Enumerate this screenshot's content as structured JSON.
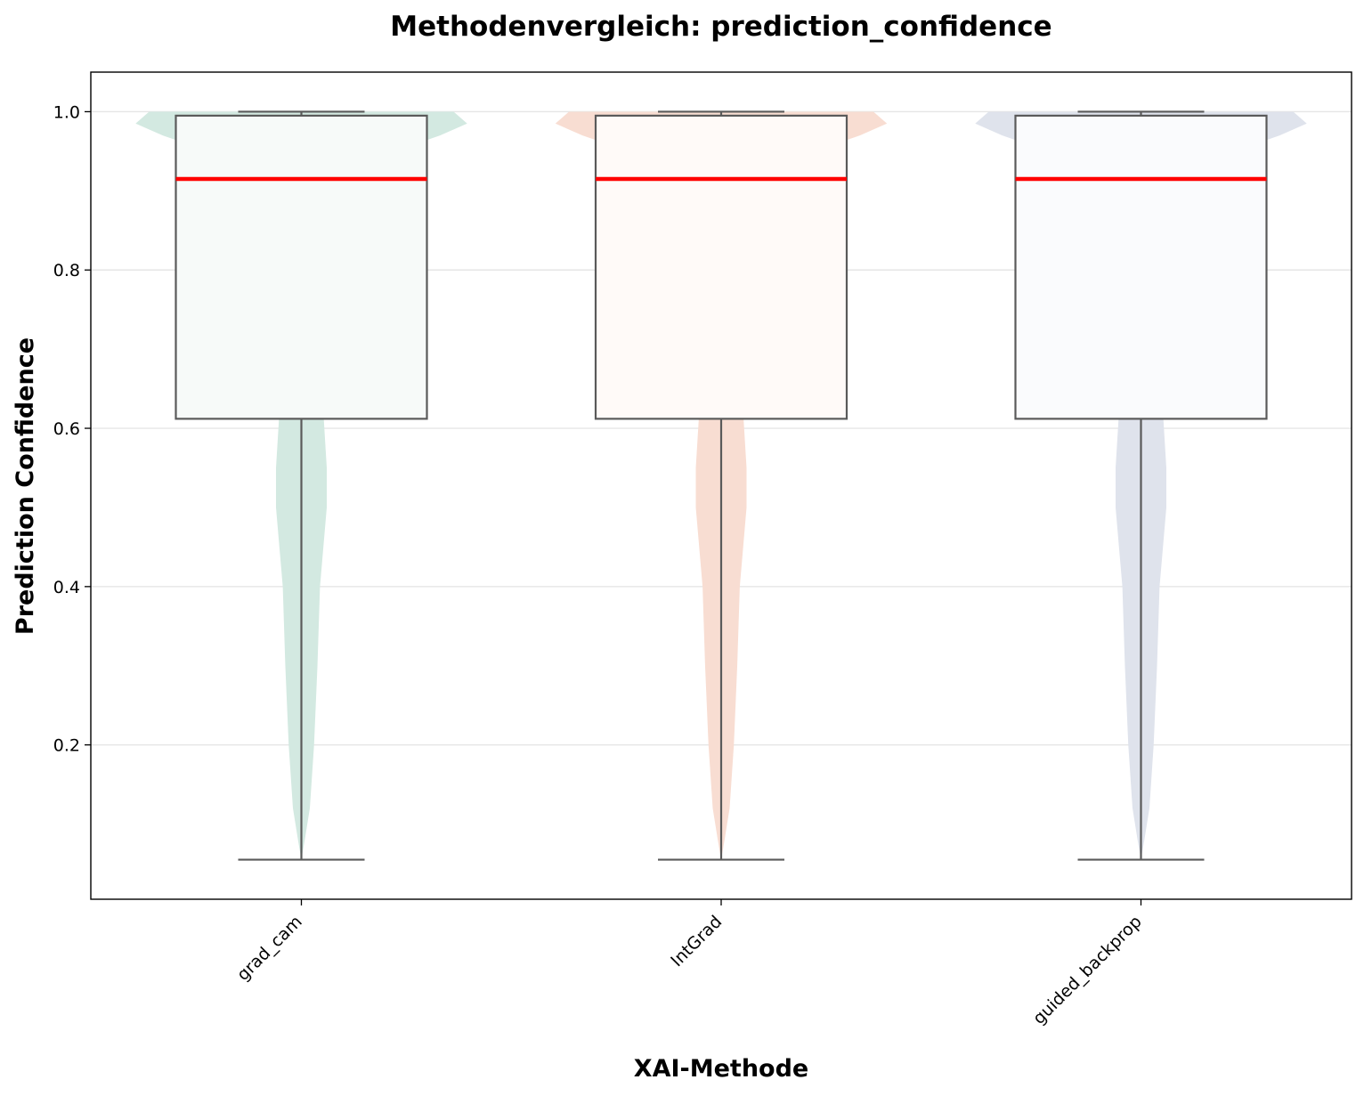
{
  "chart_data": {
    "type": "violin+box",
    "title": "Methodenvergleich: prediction_confidence",
    "xlabel": "XAI-Methode",
    "ylabel": "Prediction Confidence",
    "categories": [
      "grad_cam",
      "IntGrad",
      "guided_backprop"
    ],
    "ylim": [
      0.005,
      1.05
    ],
    "yticks": [
      0.2,
      0.4,
      0.6,
      0.8,
      1.0
    ],
    "grid": "horizontal",
    "colors": {
      "violins": [
        "#d3e9e1",
        "#f8ddd2",
        "#dfe3ec"
      ],
      "box_fill": [
        "#f7faf9",
        "#fffaf8",
        "#fafbfd"
      ],
      "box_edge": "#5a5a5a",
      "median": "#ff0000",
      "grid": "#e6e6e6"
    },
    "series": [
      {
        "name": "grad_cam",
        "box": {
          "min": 0.055,
          "q1": 0.612,
          "median": 0.915,
          "q3": 0.995,
          "max": 1.0
        },
        "violin": {
          "y": [
            0.055,
            0.08,
            0.12,
            0.2,
            0.3,
            0.4,
            0.5,
            0.55,
            0.62,
            0.7,
            0.75,
            0.8,
            0.85,
            0.9,
            0.95,
            0.97,
            0.985,
            1.0
          ],
          "w": [
            0.0,
            0.02,
            0.05,
            0.075,
            0.095,
            0.11,
            0.15,
            0.15,
            0.13,
            0.14,
            0.15,
            0.17,
            0.21,
            0.32,
            0.55,
            0.82,
            0.98,
            0.9
          ]
        }
      },
      {
        "name": "IntGrad",
        "box": {
          "min": 0.055,
          "q1": 0.612,
          "median": 0.915,
          "q3": 0.995,
          "max": 1.0
        },
        "violin": {
          "y": [
            0.055,
            0.08,
            0.12,
            0.2,
            0.3,
            0.4,
            0.5,
            0.55,
            0.62,
            0.7,
            0.75,
            0.8,
            0.85,
            0.9,
            0.95,
            0.97,
            0.985,
            1.0
          ],
          "w": [
            0.0,
            0.02,
            0.05,
            0.075,
            0.095,
            0.11,
            0.15,
            0.15,
            0.13,
            0.14,
            0.15,
            0.17,
            0.21,
            0.32,
            0.55,
            0.82,
            0.98,
            0.9
          ]
        }
      },
      {
        "name": "guided_backprop",
        "box": {
          "min": 0.055,
          "q1": 0.612,
          "median": 0.915,
          "q3": 0.995,
          "max": 1.0
        },
        "violin": {
          "y": [
            0.055,
            0.08,
            0.12,
            0.2,
            0.3,
            0.4,
            0.5,
            0.55,
            0.62,
            0.7,
            0.75,
            0.8,
            0.85,
            0.9,
            0.95,
            0.97,
            0.985,
            1.0
          ],
          "w": [
            0.0,
            0.02,
            0.05,
            0.075,
            0.095,
            0.11,
            0.15,
            0.15,
            0.13,
            0.14,
            0.15,
            0.17,
            0.21,
            0.32,
            0.55,
            0.82,
            0.98,
            0.9
          ]
        }
      }
    ]
  }
}
